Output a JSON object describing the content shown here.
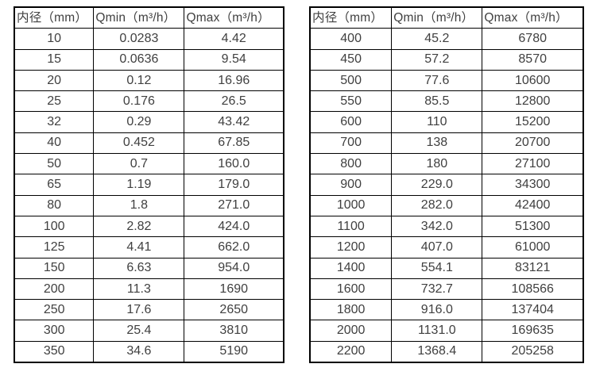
{
  "colors": {
    "text": "#404040",
    "border": "#000000",
    "background": "#ffffff"
  },
  "chart_data": [
    {
      "type": "table",
      "name": "flow-rates-small-diameters",
      "columns": [
        "内径（mm）",
        "Qmin（m³/h）",
        "Qmax（m³/h）"
      ],
      "rows": [
        [
          "10",
          "0.0283",
          "4.42"
        ],
        [
          "15",
          "0.0636",
          "9.54"
        ],
        [
          "20",
          "0.12",
          "16.96"
        ],
        [
          "25",
          "0.176",
          "26.5"
        ],
        [
          "32",
          "0.29",
          "43.42"
        ],
        [
          "40",
          "0.452",
          "67.85"
        ],
        [
          "50",
          "0.7",
          "160.0"
        ],
        [
          "65",
          "1.19",
          "179.0"
        ],
        [
          "80",
          "1.8",
          "271.0"
        ],
        [
          "100",
          "2.82",
          "424.0"
        ],
        [
          "125",
          "4.41",
          "662.0"
        ],
        [
          "150",
          "6.63",
          "954.0"
        ],
        [
          "200",
          "11.3",
          "1690"
        ],
        [
          "250",
          "17.6",
          "2650"
        ],
        [
          "300",
          "25.4",
          "3810"
        ],
        [
          "350",
          "34.6",
          "5190"
        ]
      ]
    },
    {
      "type": "table",
      "name": "flow-rates-large-diameters",
      "columns": [
        "内径（mm）",
        "Qmin（m³/h）",
        "Qmax（m³/h）"
      ],
      "rows": [
        [
          "400",
          "45.2",
          "6780"
        ],
        [
          "450",
          "57.2",
          "8570"
        ],
        [
          "500",
          "77.6",
          "10600"
        ],
        [
          "550",
          "85.5",
          "12800"
        ],
        [
          "600",
          "110",
          "15200"
        ],
        [
          "700",
          "138",
          "20700"
        ],
        [
          "800",
          "180",
          "27100"
        ],
        [
          "900",
          "229.0",
          "34300"
        ],
        [
          "1000",
          "282.0",
          "42400"
        ],
        [
          "1100",
          "342.0",
          "51300"
        ],
        [
          "1200",
          "407.0",
          "61000"
        ],
        [
          "1400",
          "554.1",
          "83121"
        ],
        [
          "1600",
          "732.7",
          "108566"
        ],
        [
          "1800",
          "916.0",
          "137404"
        ],
        [
          "2000",
          "1131.0",
          "169635"
        ],
        [
          "2200",
          "1368.4",
          "205258"
        ]
      ]
    }
  ]
}
